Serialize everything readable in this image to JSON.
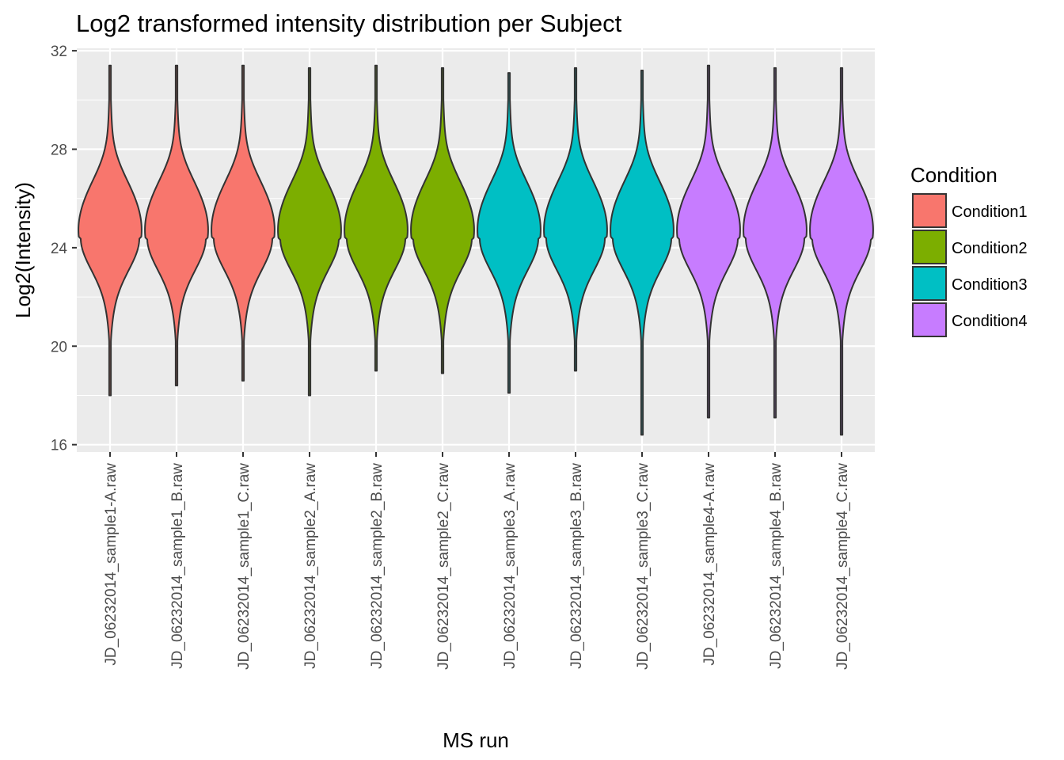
{
  "chart_data": {
    "type": "violin",
    "title": "Log2 transformed intensity distribution per Subject",
    "xlabel": "MS run",
    "ylabel": "Log2(Intensity)",
    "ylim": [
      15.7,
      32.1
    ],
    "yticks": [
      16,
      20,
      24,
      28,
      32
    ],
    "grid": true,
    "legend": {
      "title": "Condition",
      "placement": "right",
      "entries": [
        {
          "label": "Condition1",
          "color": "#F8766D"
        },
        {
          "label": "Condition2",
          "color": "#7CAE00"
        },
        {
          "label": "Condition3",
          "color": "#00BFC4"
        },
        {
          "label": "Condition4",
          "color": "#C77CFF"
        }
      ]
    },
    "categories": [
      {
        "label": "JD_06232014_sample1-A.raw",
        "condition": "Condition1",
        "min": 18.0,
        "max": 31.4
      },
      {
        "label": "JD_06232014_sample1_B.raw",
        "condition": "Condition1",
        "min": 18.4,
        "max": 31.4
      },
      {
        "label": "JD_06232014_sample1_C.raw",
        "condition": "Condition1",
        "min": 18.6,
        "max": 31.4
      },
      {
        "label": "JD_06232014_sample2_A.raw",
        "condition": "Condition2",
        "min": 18.0,
        "max": 31.3
      },
      {
        "label": "JD_06232014_sample2_B.raw",
        "condition": "Condition2",
        "min": 19.0,
        "max": 31.4
      },
      {
        "label": "JD_06232014_sample2_C.raw",
        "condition": "Condition2",
        "min": 18.9,
        "max": 31.3
      },
      {
        "label": "JD_06232014_sample3_A.raw",
        "condition": "Condition3",
        "min": 18.1,
        "max": 31.1
      },
      {
        "label": "JD_06232014_sample3_B.raw",
        "condition": "Condition3",
        "min": 19.0,
        "max": 31.3
      },
      {
        "label": "JD_06232014_sample3_C.raw",
        "condition": "Condition3",
        "min": 16.4,
        "max": 31.2
      },
      {
        "label": "JD_06232014_sample4-A.raw",
        "condition": "Condition4",
        "min": 17.1,
        "max": 31.4
      },
      {
        "label": "JD_06232014_sample4_B.raw",
        "condition": "Condition4",
        "min": 17.1,
        "max": 31.3
      },
      {
        "label": "JD_06232014_sample4_C.raw",
        "condition": "Condition4",
        "min": 16.4,
        "max": 31.3
      }
    ]
  }
}
